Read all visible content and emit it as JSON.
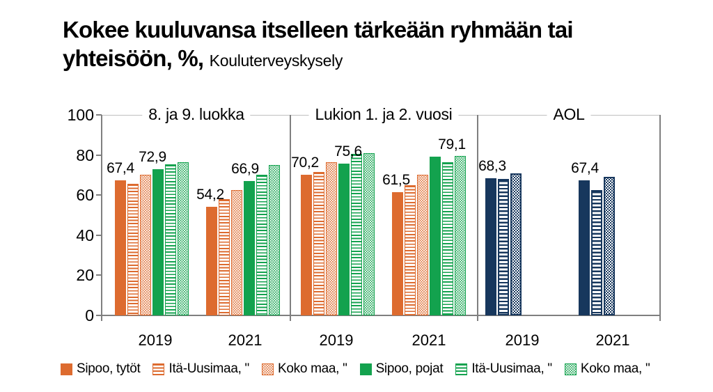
{
  "title": "Kokee kuuluvansa itselleen tärkeään ryhmään tai",
  "title_line2": "yhteisöön, %,",
  "subtitle": "Kouluterveyskysely",
  "chart_data": {
    "type": "bar",
    "title": "Kokee kuuluvansa itselleen tärkeään ryhmään tai yhteisöön, %",
    "source_note": "Kouluterveyskysely",
    "ylim": [
      0,
      100
    ],
    "yticks": [
      0,
      20,
      40,
      60,
      80,
      100
    ],
    "grid": false,
    "legend_position": "bottom",
    "colors": {
      "orange": "#DD6B2F",
      "green": "#13A24E",
      "navy": "#17375D",
      "axis": "#7F7F7F",
      "plot_top_border": "#BFBFBF"
    },
    "series_sets": {
      "main": [
        {
          "name": "Sipoo, tytöt",
          "color": "#DD6B2F",
          "pattern": "solid"
        },
        {
          "name": "Itä-Uusimaa, \"",
          "color": "#DD6B2F",
          "pattern": "lines"
        },
        {
          "name": "Koko maa, \"",
          "color": "#DD6B2F",
          "pattern": "dots"
        },
        {
          "name": "Sipoo, pojat",
          "color": "#13A24E",
          "pattern": "solid"
        },
        {
          "name": "Itä-Uusimaa, \"",
          "color": "#13A24E",
          "pattern": "lines"
        },
        {
          "name": "Koko maa, \"",
          "color": "#13A24E",
          "pattern": "dots"
        }
      ],
      "aol": [
        {
          "name": "Sipoo",
          "color": "#17375D",
          "pattern": "solid"
        },
        {
          "name": "Itä-Uusimaa",
          "color": "#17375D",
          "pattern": "lines"
        },
        {
          "name": "Koko maa",
          "color": "#17375D",
          "pattern": "dots"
        }
      ]
    },
    "panels": [
      {
        "label": "8. ja 9. luokka",
        "series_set": "main",
        "groups": [
          {
            "year": "2019",
            "values": [
              67.4,
              65.5,
              70,
              72.9,
              75.5,
              76.5
            ],
            "data_labels": [
              {
                "bar": 0,
                "text": "67,4",
                "dx": 0
              },
              {
                "bar": 3,
                "text": "72,9",
                "dx": -8
              }
            ]
          },
          {
            "year": "2021",
            "values": [
              54.2,
              58,
              62.5,
              66.9,
              70,
              75
            ],
            "data_labels": [
              {
                "bar": 0,
                "text": "54,2",
                "dx": -2
              },
              {
                "bar": 3,
                "text": "66,9",
                "dx": -6
              }
            ]
          }
        ]
      },
      {
        "label": "Lukion 1. ja 2. vuosi",
        "series_set": "main",
        "groups": [
          {
            "year": "2019",
            "values": [
              70.2,
              71.5,
              76.5,
              75.6,
              80.5,
              81
            ],
            "data_labels": [
              {
                "bar": 0,
                "text": "70,2",
                "dx": -2
              },
              {
                "bar": 3,
                "text": "75,6",
                "dx": 6
              }
            ]
          },
          {
            "year": "2021",
            "values": [
              61.5,
              65,
              70,
              79.1,
              76.5,
              79.5
            ],
            "data_labels": [
              {
                "bar": 0,
                "text": "61,5",
                "dx": -2
              },
              {
                "bar": 3,
                "text": "79,1",
                "dx": 24
              }
            ]
          }
        ]
      },
      {
        "label": "AOL",
        "series_set": "aol",
        "groups": [
          {
            "year": "2019",
            "values": [
              68.3,
              68,
              71
            ],
            "data_labels": [
              {
                "bar": 0,
                "text": "68,3",
                "dx": 2
              }
            ]
          },
          {
            "year": "2021",
            "values": [
              67.4,
              62.5,
              69
            ],
            "data_labels": [
              {
                "bar": 0,
                "text": "67,4",
                "dx": 1
              }
            ]
          }
        ]
      }
    ],
    "legend": [
      {
        "label": "Sipoo, tytöt",
        "color": "#DD6B2F",
        "pattern": "solid"
      },
      {
        "label": "Itä-Uusimaa, \"",
        "color": "#DD6B2F",
        "pattern": "lines"
      },
      {
        "label": "Koko maa, \"",
        "color": "#DD6B2F",
        "pattern": "dots"
      },
      {
        "label": "Sipoo, pojat",
        "color": "#13A24E",
        "pattern": "solid"
      },
      {
        "label": "Itä-Uusimaa, \"",
        "color": "#13A24E",
        "pattern": "lines"
      },
      {
        "label": "Koko maa, \"",
        "color": "#13A24E",
        "pattern": "dots"
      }
    ]
  }
}
